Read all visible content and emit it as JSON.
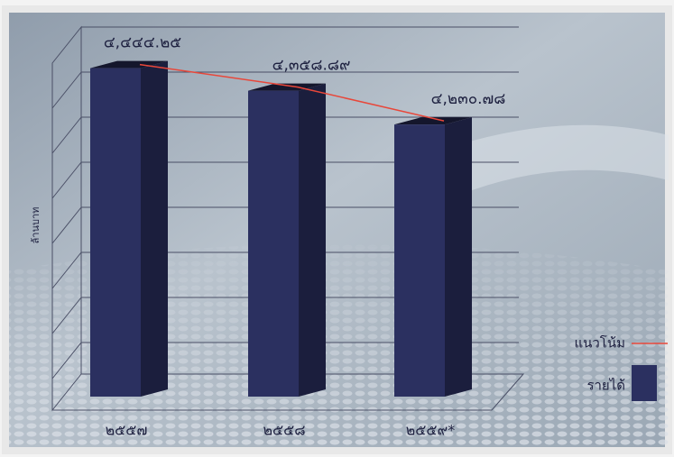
{
  "chart_data": {
    "type": "bar3d",
    "ylabel": "ล้านบาท",
    "categories": [
      "๒๕๕๗",
      "๒๕๕๘",
      "๒๕๕๙*"
    ],
    "series": [
      {
        "name": "รายได้",
        "color": "#2b3060",
        "values": [
          4444.25,
          4358.89,
          4230.78
        ],
        "value_labels": [
          "๔,๔๔๔.๒๕",
          "๔,๓๕๘.๘๙",
          "๔,๒๓๐.๗๘"
        ]
      }
    ],
    "trend": {
      "name": "แนวโน้ม",
      "color": "#e8473a"
    },
    "ylim": [
      3200,
      4600
    ]
  }
}
